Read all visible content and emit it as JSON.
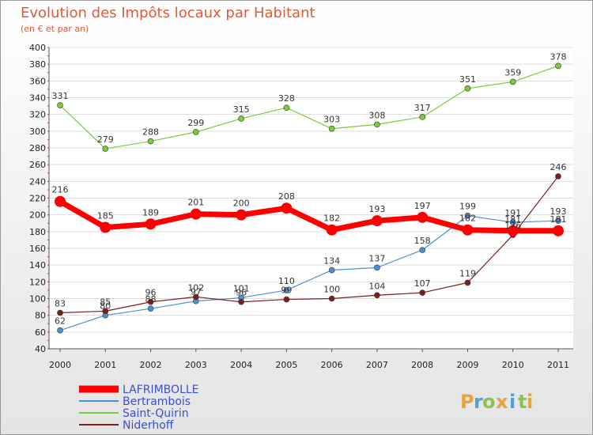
{
  "title": "Evolution des Impôts locaux par Habitant",
  "subtitle": "(en € et par an)",
  "logo": {
    "text": "Proxiti",
    "letters": [
      "P",
      "r",
      "o",
      "x",
      "i",
      "t",
      "i"
    ],
    "colors": [
      "#e8a33b",
      "#4aa3df",
      "#8bc34a",
      "#e8a33b",
      "#4aa3df",
      "#8bc34a",
      "#e8a33b"
    ]
  },
  "chart_data": {
    "type": "line",
    "x": [
      2000,
      2001,
      2002,
      2003,
      2004,
      2005,
      2006,
      2007,
      2008,
      2009,
      2010,
      2011
    ],
    "ylim": [
      40,
      400
    ],
    "yticks": [
      40,
      60,
      80,
      100,
      120,
      140,
      160,
      180,
      200,
      220,
      240,
      260,
      280,
      300,
      320,
      340,
      360,
      380,
      400
    ],
    "grid": "horizontal",
    "legend_position": "bottom-left",
    "series": [
      {
        "name": "LAFRIMBOLLE",
        "color": "#ff0000",
        "values": [
          216,
          185,
          189,
          201,
          200,
          208,
          182,
          193,
          197,
          182,
          181,
          181
        ]
      },
      {
        "name": "Bertrambois",
        "color": "#4a90d9",
        "values": [
          62,
          80,
          88,
          97,
          101,
          110,
          134,
          137,
          158,
          199,
          191,
          193
        ]
      },
      {
        "name": "Saint-Quirin",
        "color": "#7acc3a",
        "values": [
          331,
          279,
          288,
          299,
          315,
          328,
          303,
          308,
          317,
          351,
          359,
          378
        ]
      },
      {
        "name": "Niderhoff",
        "color": "#7a1f1f",
        "values": [
          83,
          85,
          96,
          102,
          96,
          99,
          100,
          104,
          107,
          119,
          176,
          246
        ]
      }
    ]
  }
}
